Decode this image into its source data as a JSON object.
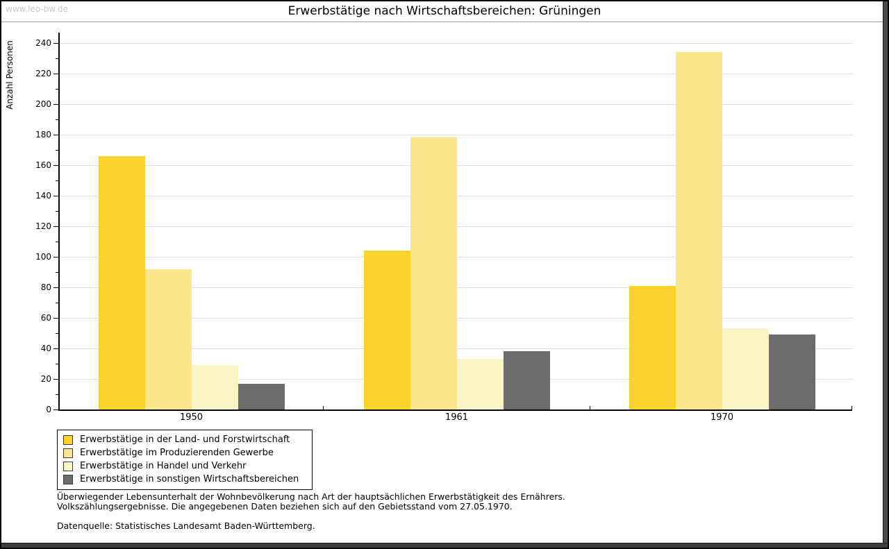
{
  "watermark": "www.leo-bw.de",
  "title": "Erwerbstätige nach Wirtschaftsbereichen: Grüningen",
  "chart_data": {
    "type": "bar",
    "title": "Erwerbstätige nach Wirtschaftsbereichen: Grüningen",
    "xlabel": "",
    "ylabel": "Anzahl Personen",
    "ylim": [
      0,
      240
    ],
    "ytick_step": 20,
    "ytick_minor_step": 10,
    "grid": true,
    "legend_position": "bottom-left",
    "categories": [
      "1950",
      "1961",
      "1970"
    ],
    "series": [
      {
        "name": "Erwerbstätige in der Land- und Forstwirtschaft",
        "color": "#FCD22C",
        "values": [
          166,
          104,
          81
        ]
      },
      {
        "name": "Erwerbstätige im Produzierenden Gewerbe",
        "color": "#FCE68C",
        "values": [
          92,
          178,
          234
        ]
      },
      {
        "name": "Erwerbstätige in Handel und Verkehr",
        "color": "#FBF4C4",
        "values": [
          29,
          33,
          53
        ]
      },
      {
        "name": "Erwerbstätige in sonstigen Wirtschaftsbereichen",
        "color": "#6C6C6C",
        "values": [
          17,
          38,
          49
        ]
      }
    ]
  },
  "footer": {
    "note_line1": "Überwiegender Lebensunterhalt der Wohnbevölkerung nach Art der hauptsächlichen Erwerbstätigkeit des Ernährers.",
    "note_line2": "Volkszählungsergebnisse. Die angegebenen Daten beziehen sich auf den Gebietsstand vom 27.05.1970.",
    "source": "Datenquelle: Statistisches Landesamt Baden-Württemberg."
  }
}
